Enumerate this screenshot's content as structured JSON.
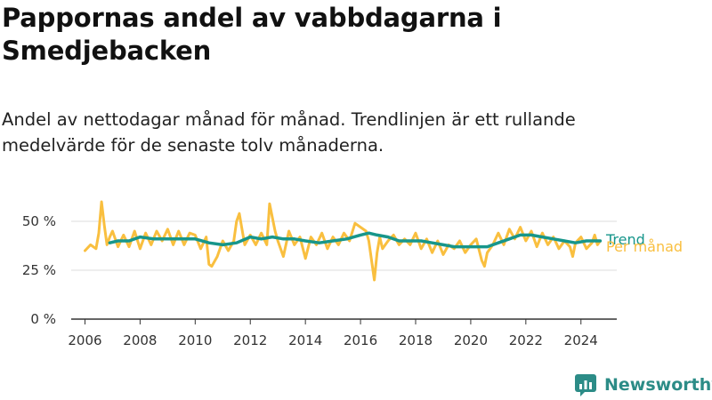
{
  "title": "Pappornas andel av vabbdagarna i Smedjebacken",
  "subtitle": "Andel av nettodagar månad för månad. Trendlinjen är ett rullande medelvärde för de senaste tolv månaderna.",
  "brand": "Newsworthy",
  "colors": {
    "monthly": "#f9bf3f",
    "trend": "#17968b",
    "axis": "#333333",
    "grid": "#dddddd",
    "brand": "#2c8c87"
  },
  "chart_data": {
    "type": "line",
    "xlabel": "",
    "ylabel": "",
    "xlim": [
      2005.5,
      2025.3
    ],
    "ylim": [
      0,
      50
    ],
    "x_ticks": [
      2006,
      2008,
      2010,
      2012,
      2014,
      2016,
      2018,
      2020,
      2022,
      2024
    ],
    "x_tick_labels": [
      "2006",
      "2008",
      "2010",
      "2012",
      "2014",
      "2016",
      "2018",
      "2020",
      "2022",
      "2024"
    ],
    "y_ticks": [
      0,
      25,
      50
    ],
    "y_tick_labels": [
      "0 %",
      "25 %",
      "50 %"
    ],
    "grid": true,
    "series": [
      {
        "name": "Per månad",
        "color": "#f9bf3f",
        "points": [
          [
            2006.0,
            35
          ],
          [
            2006.2,
            38
          ],
          [
            2006.4,
            36
          ],
          [
            2006.5,
            44
          ],
          [
            2006.6,
            60
          ],
          [
            2006.7,
            48
          ],
          [
            2006.8,
            38
          ],
          [
            2006.9,
            42
          ],
          [
            2007.0,
            45
          ],
          [
            2007.2,
            37
          ],
          [
            2007.4,
            43
          ],
          [
            2007.6,
            37
          ],
          [
            2007.8,
            45
          ],
          [
            2008.0,
            36
          ],
          [
            2008.2,
            44
          ],
          [
            2008.4,
            38
          ],
          [
            2008.6,
            45
          ],
          [
            2008.8,
            40
          ],
          [
            2009.0,
            46
          ],
          [
            2009.2,
            38
          ],
          [
            2009.4,
            45
          ],
          [
            2009.6,
            38
          ],
          [
            2009.8,
            44
          ],
          [
            2010.0,
            43
          ],
          [
            2010.2,
            36
          ],
          [
            2010.4,
            42
          ],
          [
            2010.5,
            28
          ],
          [
            2010.6,
            27
          ],
          [
            2010.8,
            32
          ],
          [
            2011.0,
            40
          ],
          [
            2011.2,
            35
          ],
          [
            2011.4,
            40
          ],
          [
            2011.5,
            50
          ],
          [
            2011.6,
            54
          ],
          [
            2011.7,
            46
          ],
          [
            2011.8,
            38
          ],
          [
            2012.0,
            43
          ],
          [
            2012.2,
            38
          ],
          [
            2012.4,
            44
          ],
          [
            2012.6,
            38
          ],
          [
            2012.7,
            59
          ],
          [
            2012.8,
            52
          ],
          [
            2012.9,
            45
          ],
          [
            2013.0,
            40
          ],
          [
            2013.2,
            32
          ],
          [
            2013.4,
            45
          ],
          [
            2013.6,
            38
          ],
          [
            2013.8,
            42
          ],
          [
            2014.0,
            31
          ],
          [
            2014.2,
            42
          ],
          [
            2014.4,
            38
          ],
          [
            2014.6,
            44
          ],
          [
            2014.8,
            36
          ],
          [
            2015.0,
            42
          ],
          [
            2015.2,
            38
          ],
          [
            2015.4,
            44
          ],
          [
            2015.6,
            40
          ],
          [
            2015.8,
            49
          ],
          [
            2016.0,
            47
          ],
          [
            2016.2,
            45
          ],
          [
            2016.3,
            40
          ],
          [
            2016.4,
            30
          ],
          [
            2016.5,
            20
          ],
          [
            2016.6,
            34
          ],
          [
            2016.7,
            42
          ],
          [
            2016.8,
            36
          ],
          [
            2017.0,
            40
          ],
          [
            2017.2,
            43
          ],
          [
            2017.4,
            38
          ],
          [
            2017.6,
            41
          ],
          [
            2017.8,
            38
          ],
          [
            2018.0,
            44
          ],
          [
            2018.2,
            36
          ],
          [
            2018.4,
            41
          ],
          [
            2018.6,
            34
          ],
          [
            2018.8,
            40
          ],
          [
            2019.0,
            33
          ],
          [
            2019.2,
            38
          ],
          [
            2019.4,
            36
          ],
          [
            2019.6,
            40
          ],
          [
            2019.8,
            34
          ],
          [
            2020.0,
            38
          ],
          [
            2020.2,
            41
          ],
          [
            2020.4,
            30
          ],
          [
            2020.5,
            27
          ],
          [
            2020.6,
            34
          ],
          [
            2020.8,
            38
          ],
          [
            2021.0,
            44
          ],
          [
            2021.2,
            38
          ],
          [
            2021.4,
            46
          ],
          [
            2021.6,
            41
          ],
          [
            2021.8,
            47
          ],
          [
            2022.0,
            40
          ],
          [
            2022.2,
            45
          ],
          [
            2022.4,
            37
          ],
          [
            2022.6,
            44
          ],
          [
            2022.8,
            38
          ],
          [
            2023.0,
            42
          ],
          [
            2023.2,
            36
          ],
          [
            2023.4,
            40
          ],
          [
            2023.6,
            37
          ],
          [
            2023.7,
            32
          ],
          [
            2023.8,
            39
          ],
          [
            2024.0,
            42
          ],
          [
            2024.2,
            36
          ],
          [
            2024.4,
            39
          ],
          [
            2024.5,
            43
          ],
          [
            2024.6,
            38
          ],
          [
            2024.7,
            40
          ]
        ]
      },
      {
        "name": "Trend",
        "color": "#17968b",
        "points": [
          [
            2006.9,
            39
          ],
          [
            2007.2,
            40
          ],
          [
            2007.6,
            40
          ],
          [
            2008.0,
            42
          ],
          [
            2008.5,
            41
          ],
          [
            2009.0,
            41
          ],
          [
            2009.5,
            41
          ],
          [
            2010.0,
            41
          ],
          [
            2010.5,
            39
          ],
          [
            2011.0,
            38
          ],
          [
            2011.5,
            39
          ],
          [
            2012.0,
            42
          ],
          [
            2012.4,
            41
          ],
          [
            2012.8,
            42
          ],
          [
            2013.2,
            41
          ],
          [
            2013.6,
            41
          ],
          [
            2014.0,
            40
          ],
          [
            2014.5,
            39
          ],
          [
            2015.0,
            40
          ],
          [
            2015.5,
            41
          ],
          [
            2016.0,
            43
          ],
          [
            2016.3,
            44
          ],
          [
            2016.6,
            43
          ],
          [
            2017.0,
            42
          ],
          [
            2017.4,
            40
          ],
          [
            2017.8,
            40
          ],
          [
            2018.2,
            40
          ],
          [
            2018.6,
            39
          ],
          [
            2019.0,
            38
          ],
          [
            2019.4,
            37
          ],
          [
            2019.8,
            37
          ],
          [
            2020.2,
            37
          ],
          [
            2020.6,
            37
          ],
          [
            2021.0,
            39
          ],
          [
            2021.4,
            41
          ],
          [
            2021.8,
            43
          ],
          [
            2022.2,
            43
          ],
          [
            2022.6,
            42
          ],
          [
            2023.0,
            41
          ],
          [
            2023.4,
            40
          ],
          [
            2023.8,
            39
          ],
          [
            2024.2,
            40
          ],
          [
            2024.7,
            40
          ]
        ]
      }
    ],
    "series_labels": [
      "Trend",
      "Per månad"
    ]
  }
}
